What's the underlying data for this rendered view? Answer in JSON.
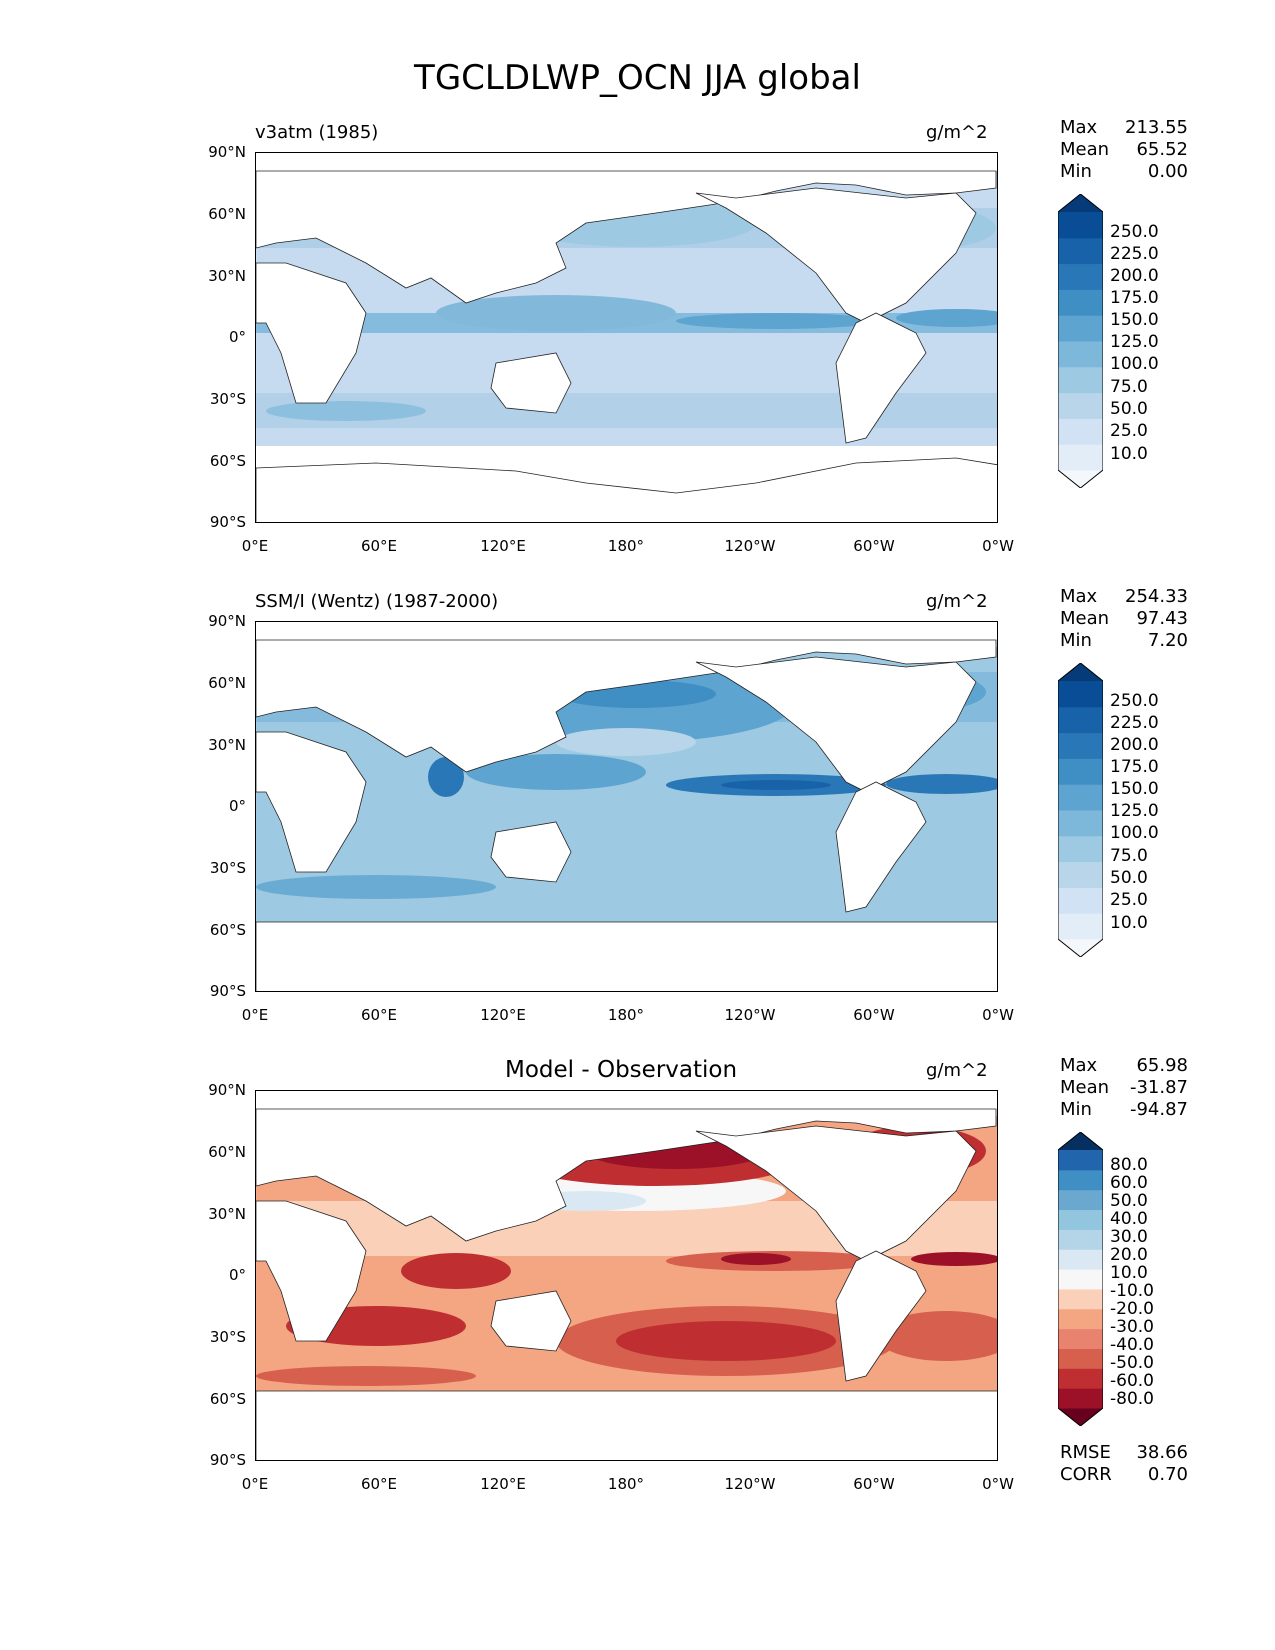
{
  "figure": {
    "title": "TGCLDLWP_OCN JJA global",
    "units": "g/m^2"
  },
  "axes": {
    "lat_ticks": [
      "90°N",
      "60°N",
      "30°N",
      "0°",
      "30°S",
      "60°S",
      "90°S"
    ],
    "lon_ticks": [
      "0°E",
      "60°E",
      "120°E",
      "180°",
      "120°W",
      "60°W",
      "0°W"
    ]
  },
  "panels": [
    {
      "label": "v3atm (1985)",
      "title": "",
      "units": "g/m^2",
      "stats": [
        {
          "k": "Max",
          "v": "213.55"
        },
        {
          "k": "Mean",
          "v": "65.52"
        },
        {
          "k": "Min",
          "v": "0.00"
        }
      ],
      "colorbar": {
        "labels": [
          "250.0",
          "225.0",
          "200.0",
          "175.0",
          "150.0",
          "125.0",
          "100.0",
          "75.0",
          "50.0",
          "25.0",
          "10.0"
        ],
        "colors": [
          "#f4f8fd",
          "#e2edf8",
          "#d0e2f3",
          "#b8d5ea",
          "#9ec9e2",
          "#7db8db",
          "#5da4d1",
          "#3f8ec4",
          "#2a77b7",
          "#1762a8",
          "#084d96",
          "#073a78"
        ]
      }
    },
    {
      "label": "SSM/I (Wentz) (1987-2000)",
      "title": "",
      "units": "g/m^2",
      "stats": [
        {
          "k": "Max",
          "v": "254.33"
        },
        {
          "k": "Mean",
          "v": "97.43"
        },
        {
          "k": "Min",
          "v": "7.20"
        }
      ],
      "colorbar": {
        "labels": [
          "250.0",
          "225.0",
          "200.0",
          "175.0",
          "150.0",
          "125.0",
          "100.0",
          "75.0",
          "50.0",
          "25.0",
          "10.0"
        ],
        "colors": [
          "#f4f8fd",
          "#e2edf8",
          "#d0e2f3",
          "#b8d5ea",
          "#9ec9e2",
          "#7db8db",
          "#5da4d1",
          "#3f8ec4",
          "#2a77b7",
          "#1762a8",
          "#084d96",
          "#073a78"
        ]
      }
    },
    {
      "label": "",
      "title": "Model - Observation",
      "units": "g/m^2",
      "stats": [
        {
          "k": "Max",
          "v": "65.98"
        },
        {
          "k": "Mean",
          "v": "-31.87"
        },
        {
          "k": "Min",
          "v": "-94.87"
        }
      ],
      "colorbar": {
        "labels": [
          "80.0",
          "60.0",
          "50.0",
          "40.0",
          "30.0",
          "20.0",
          "10.0",
          "-10.0",
          "-20.0",
          "-30.0",
          "-40.0",
          "-50.0",
          "-60.0",
          "-80.0"
        ],
        "colors": [
          "#67001f",
          "#9c1127",
          "#bf2f32",
          "#d6604d",
          "#e8836f",
          "#f4a582",
          "#fbd0b9",
          "#f7f7f7",
          "#d9e8f2",
          "#b4d4e7",
          "#92c5de",
          "#6aa8cf",
          "#3f8ec4",
          "#2166ac",
          "#053061"
        ]
      },
      "metrics": [
        {
          "k": "RMSE",
          "v": "38.66"
        },
        {
          "k": "CORR",
          "v": "0.70"
        }
      ]
    }
  ]
}
